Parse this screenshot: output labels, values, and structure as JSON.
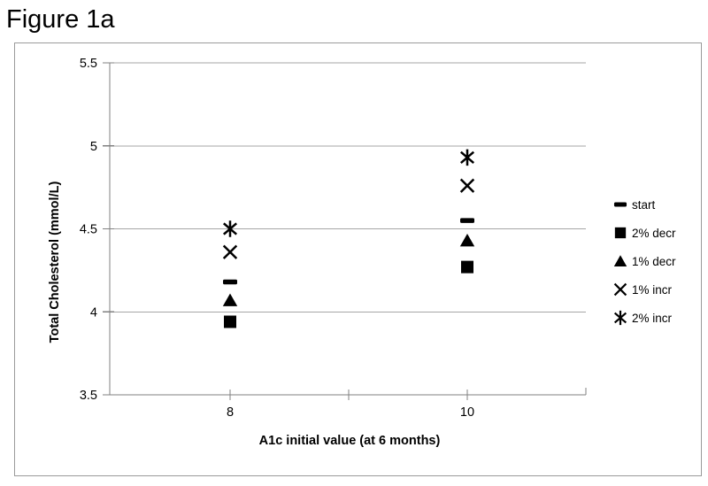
{
  "figure_title": "Figure 1a",
  "chart_data": {
    "type": "scatter",
    "xlabel": "A1c initial value (at 6 months)",
    "ylabel": "Total Cholesterol (mmol/L)",
    "x": [
      8,
      10
    ],
    "xlim": [
      7,
      11
    ],
    "xticks": [
      8,
      9,
      10
    ],
    "xtick_labels": [
      "8",
      "",
      "10"
    ],
    "ylim": [
      3.5,
      5.5
    ],
    "yticks": [
      5.5,
      5.0,
      4.5,
      4.0,
      3.5
    ],
    "ytick_labels": [
      "5.5",
      "5",
      "4.5",
      "4",
      "3.5"
    ],
    "grid": true,
    "legend_position": "right",
    "series": [
      {
        "name": "start",
        "marker": "dash",
        "values": [
          4.18,
          4.55
        ]
      },
      {
        "name": "2% decr",
        "marker": "square",
        "values": [
          3.94,
          4.27
        ]
      },
      {
        "name": "1% decr",
        "marker": "triangle",
        "values": [
          4.07,
          4.43
        ]
      },
      {
        "name": "1% incr",
        "marker": "x",
        "values": [
          4.36,
          4.76
        ]
      },
      {
        "name": "2% incr",
        "marker": "star",
        "values": [
          4.5,
          4.93
        ]
      }
    ]
  },
  "colors": {
    "marker": "#000000",
    "gridline": "#a6a6a6",
    "axis": "#808080",
    "chart_border": "#9a9a9a",
    "text": "#000000"
  }
}
